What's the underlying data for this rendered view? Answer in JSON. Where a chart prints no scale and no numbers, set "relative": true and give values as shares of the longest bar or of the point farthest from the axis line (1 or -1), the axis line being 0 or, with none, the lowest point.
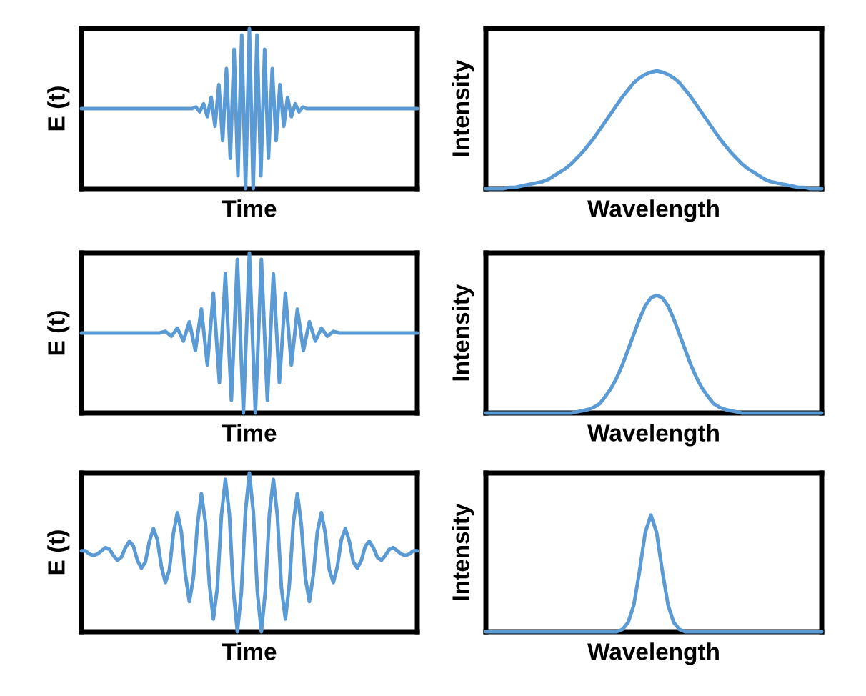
{
  "chart_data": [
    {
      "type": "line",
      "relative": true,
      "xlabel": "Time",
      "ylabel": "E (t)",
      "categories": [
        null,
        null,
        null,
        null,
        null,
        null,
        null,
        null,
        null,
        null,
        null,
        null,
        null,
        null,
        null,
        null,
        null,
        null,
        null,
        null,
        null,
        null,
        null,
        null,
        null,
        null,
        null,
        null,
        null,
        null,
        null,
        null,
        null,
        null,
        null,
        null,
        null,
        null,
        null,
        null,
        null,
        null,
        null,
        null,
        null,
        null,
        null,
        null,
        null,
        null,
        null,
        null,
        null,
        null,
        null,
        null,
        null,
        null,
        null,
        null,
        null,
        null,
        null,
        null,
        null,
        null,
        null,
        null,
        null,
        null,
        null,
        null,
        null,
        null,
        null,
        null,
        null,
        null,
        null,
        null,
        null,
        null,
        null,
        null,
        null,
        null,
        null,
        null,
        null
      ],
      "series": [
        {
          "color": "#5b9bd5",
          "values": [
            0.5,
            0.5,
            0.5,
            0.5,
            0.5,
            0.5,
            0.5,
            0.5,
            0.5,
            0.5,
            0.5,
            0.5,
            0.5,
            0.5,
            0.5,
            0.5,
            0.5,
            0.5,
            0.5,
            0.5,
            0.5,
            0.5,
            0.5,
            0.5,
            0.5,
            0.5,
            0.5,
            0.5,
            0.5,
            0.5,
            0.51,
            0.48,
            0.53,
            0.45,
            0.57,
            0.39,
            0.65,
            0.3,
            0.75,
            0.19,
            0.87,
            0.08,
            0.96,
            0.0,
            1.0,
            0.0,
            0.96,
            0.08,
            0.87,
            0.19,
            0.75,
            0.3,
            0.65,
            0.39,
            0.57,
            0.45,
            0.53,
            0.48,
            0.51,
            0.5,
            0.5,
            0.5,
            0.5,
            0.5,
            0.5,
            0.5,
            0.5,
            0.5,
            0.5,
            0.5,
            0.5,
            0.5,
            0.5,
            0.5,
            0.5,
            0.5,
            0.5,
            0.5,
            0.5,
            0.5,
            0.5,
            0.5,
            0.5,
            0.5,
            0.5,
            0.5,
            0.5,
            0.5,
            0.5
          ]
        }
      ]
    },
    {
      "type": "line",
      "relative": true,
      "xlabel": "Wavelength",
      "ylabel": "Intensity",
      "categories": [
        null,
        null,
        null,
        null,
        null,
        null,
        null,
        null,
        null,
        null,
        null,
        null,
        null,
        null,
        null,
        null,
        null,
        null,
        null,
        null,
        null,
        null,
        null,
        null,
        null,
        null,
        null,
        null,
        null,
        null,
        null,
        null,
        null,
        null,
        null,
        null,
        null,
        null,
        null,
        null,
        null,
        null,
        null,
        null,
        null,
        null,
        null,
        null,
        null,
        null,
        null,
        null,
        null,
        null,
        null,
        null,
        null,
        null,
        null,
        null
      ],
      "series": [
        {
          "color": "#5b9bd5",
          "values": [
            0,
            0,
            0,
            0,
            0.01,
            0.01,
            0.02,
            0.03,
            0.04,
            0.05,
            0.06,
            0.08,
            0.11,
            0.14,
            0.17,
            0.21,
            0.26,
            0.31,
            0.37,
            0.43,
            0.5,
            0.57,
            0.64,
            0.71,
            0.78,
            0.84,
            0.9,
            0.94,
            0.97,
            0.99,
            1.0,
            0.99,
            0.97,
            0.94,
            0.9,
            0.84,
            0.78,
            0.71,
            0.64,
            0.57,
            0.5,
            0.43,
            0.37,
            0.31,
            0.26,
            0.21,
            0.17,
            0.14,
            0.11,
            0.08,
            0.06,
            0.05,
            0.04,
            0.03,
            0.02,
            0.01,
            0.01,
            0,
            0,
            0
          ]
        }
      ]
    },
    {
      "type": "line",
      "relative": true,
      "xlabel": "Time",
      "ylabel": "E (t)",
      "categories": [
        null,
        null,
        null,
        null,
        null,
        null,
        null,
        null,
        null,
        null,
        null,
        null,
        null,
        null,
        null,
        null,
        null,
        null,
        null,
        null,
        null,
        null,
        null,
        null,
        null,
        null,
        null,
        null,
        null,
        null,
        null,
        null,
        null,
        null,
        null,
        null,
        null,
        null,
        null,
        null,
        null,
        null,
        null,
        null,
        null,
        null,
        null,
        null,
        null,
        null,
        null,
        null,
        null,
        null,
        null,
        null,
        null
      ],
      "series": [
        {
          "color": "#5b9bd5",
          "values": [
            0.5,
            0.5,
            0.5,
            0.5,
            0.5,
            0.5,
            0.5,
            0.5,
            0.5,
            0.5,
            0.5,
            0.5,
            0.5,
            0.5,
            0.51,
            0.48,
            0.53,
            0.45,
            0.57,
            0.39,
            0.65,
            0.3,
            0.75,
            0.19,
            0.87,
            0.08,
            0.96,
            0.0,
            1.0,
            0.0,
            0.96,
            0.08,
            0.87,
            0.19,
            0.75,
            0.3,
            0.65,
            0.39,
            0.57,
            0.45,
            0.53,
            0.48,
            0.51,
            0.5,
            0.5,
            0.5,
            0.5,
            0.5,
            0.5,
            0.5,
            0.5,
            0.5,
            0.5,
            0.5,
            0.5,
            0.5,
            0.5
          ]
        }
      ]
    },
    {
      "type": "line",
      "relative": true,
      "xlabel": "Wavelength",
      "ylabel": "Intensity",
      "categories": [
        null,
        null,
        null,
        null,
        null,
        null,
        null,
        null,
        null,
        null,
        null,
        null,
        null,
        null,
        null,
        null,
        null,
        null,
        null,
        null,
        null,
        null,
        null,
        null,
        null,
        null,
        null,
        null,
        null,
        null,
        null,
        null,
        null,
        null,
        null,
        null,
        null,
        null,
        null,
        null,
        null,
        null,
        null,
        null,
        null,
        null,
        null,
        null,
        null,
        null,
        null,
        null,
        null,
        null,
        null,
        null,
        null,
        null,
        null,
        null
      ],
      "series": [
        {
          "color": "#5b9bd5",
          "values": [
            0,
            0,
            0,
            0,
            0,
            0,
            0,
            0,
            0,
            0,
            0,
            0,
            0,
            0,
            0,
            0,
            0.01,
            0.02,
            0.03,
            0.05,
            0.08,
            0.14,
            0.21,
            0.3,
            0.41,
            0.54,
            0.67,
            0.8,
            0.91,
            0.98,
            1.0,
            0.98,
            0.91,
            0.8,
            0.67,
            0.54,
            0.41,
            0.3,
            0.21,
            0.14,
            0.08,
            0.05,
            0.03,
            0.02,
            0.01,
            0,
            0,
            0,
            0,
            0,
            0,
            0,
            0,
            0,
            0,
            0,
            0,
            0,
            0,
            0
          ]
        }
      ]
    },
    {
      "type": "line",
      "relative": true,
      "xlabel": "Time",
      "ylabel": "E (t)",
      "categories": [
        null,
        null,
        null,
        null,
        null,
        null,
        null,
        null,
        null,
        null,
        null,
        null,
        null,
        null,
        null,
        null,
        null,
        null,
        null,
        null,
        null,
        null,
        null,
        null,
        null,
        null,
        null,
        null,
        null,
        null,
        null,
        null,
        null,
        null,
        null,
        null,
        null,
        null,
        null,
        null,
        null,
        null,
        null,
        null,
        null,
        null,
        null,
        null,
        null,
        null,
        null,
        null,
        null,
        null,
        null,
        null,
        null,
        null,
        null,
        null,
        null,
        null,
        null,
        null,
        null,
        null,
        null,
        null,
        null,
        null,
        null,
        null,
        null,
        null,
        null,
        null,
        null,
        null,
        null,
        null,
        null,
        null,
        null,
        null,
        null
      ],
      "series": [
        {
          "color": "#5b9bd5",
          "values": [
            0.51,
            0.51,
            0.49,
            0.48,
            0.49,
            0.51,
            0.53,
            0.52,
            0.48,
            0.45,
            0.47,
            0.53,
            0.57,
            0.54,
            0.45,
            0.4,
            0.44,
            0.57,
            0.65,
            0.58,
            0.41,
            0.31,
            0.39,
            0.62,
            0.75,
            0.63,
            0.36,
            0.19,
            0.34,
            0.67,
            0.87,
            0.69,
            0.3,
            0.08,
            0.28,
            0.73,
            0.96,
            0.74,
            0.26,
            0.0,
            0.25,
            0.75,
            1.0,
            0.75,
            0.25,
            0.0,
            0.26,
            0.74,
            0.96,
            0.73,
            0.28,
            0.08,
            0.3,
            0.69,
            0.87,
            0.67,
            0.34,
            0.19,
            0.36,
            0.63,
            0.75,
            0.62,
            0.39,
            0.31,
            0.41,
            0.58,
            0.65,
            0.57,
            0.44,
            0.4,
            0.45,
            0.54,
            0.57,
            0.53,
            0.47,
            0.45,
            0.48,
            0.52,
            0.53,
            0.51,
            0.49,
            0.48,
            0.49,
            0.51,
            0.51
          ]
        }
      ]
    },
    {
      "type": "line",
      "relative": true,
      "xlabel": "Wavelength",
      "ylabel": "Intensity",
      "categories": [
        null,
        null,
        null,
        null,
        null,
        null,
        null,
        null,
        null,
        null,
        null,
        null,
        null,
        null,
        null,
        null,
        null,
        null,
        null,
        null,
        null,
        null,
        null,
        null,
        null,
        null,
        null,
        null,
        null,
        null,
        null,
        null,
        null,
        null,
        null,
        null,
        null,
        null,
        null,
        null,
        null,
        null,
        null,
        null,
        null,
        null,
        null,
        null,
        null,
        null,
        null,
        null,
        null,
        null,
        null,
        null,
        null,
        null,
        null,
        null
      ],
      "series": [
        {
          "color": "#5b9bd5",
          "values": [
            0,
            0,
            0,
            0,
            0,
            0,
            0,
            0,
            0,
            0,
            0,
            0,
            0,
            0,
            0,
            0,
            0,
            0,
            0,
            0,
            0,
            0,
            0,
            0,
            0.02,
            0.08,
            0.23,
            0.52,
            0.85,
            1.0,
            0.85,
            0.52,
            0.23,
            0.08,
            0.02,
            0,
            0,
            0,
            0,
            0,
            0,
            0,
            0,
            0,
            0,
            0,
            0,
            0,
            0,
            0,
            0,
            0,
            0,
            0,
            0,
            0,
            0,
            0,
            0,
            0
          ]
        }
      ]
    }
  ]
}
